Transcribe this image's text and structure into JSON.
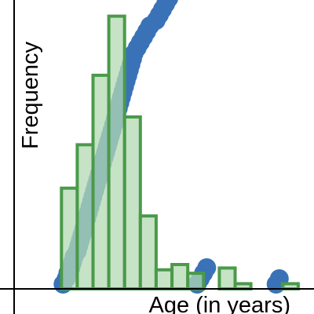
{
  "chart_data": {
    "type": "bar",
    "title": "",
    "xlabel": "Age (in years)",
    "ylabel": "Frequency",
    "bin_width": 5,
    "xlim": [
      5,
      100
    ],
    "ylim": [
      0,
      16
    ],
    "bins": [
      {
        "x0": 20,
        "x1": 25,
        "count": 5.8
      },
      {
        "x0": 25,
        "x1": 30,
        "count": 8.3
      },
      {
        "x0": 30,
        "x1": 35,
        "count": 12.3
      },
      {
        "x0": 35,
        "x1": 40,
        "count": 15.7
      },
      {
        "x0": 40,
        "x1": 45,
        "count": 9.9
      },
      {
        "x0": 45,
        "x1": 50,
        "count": 4.2
      },
      {
        "x0": 50,
        "x1": 55,
        "count": 1.1
      },
      {
        "x0": 55,
        "x1": 60,
        "count": 1.4
      },
      {
        "x0": 60,
        "x1": 65,
        "count": 0.9
      },
      {
        "x0": 65,
        "x1": 70,
        "count": 0.0
      },
      {
        "x0": 70,
        "x1": 75,
        "count": 1.2
      },
      {
        "x0": 75,
        "x1": 80,
        "count": 0.3
      },
      {
        "x0": 90,
        "x1": 95,
        "count": 0.3
      }
    ],
    "points": [
      20.5,
      21.5,
      22,
      23,
      23.5,
      24,
      25,
      25.5,
      26,
      26.5,
      27,
      27.5,
      28,
      28.5,
      29,
      29.5,
      30,
      30.5,
      31,
      31.5,
      32,
      32.5,
      33,
      33.5,
      34,
      34.5,
      35,
      35.5,
      36,
      36.5,
      37,
      37.5,
      38,
      38.5,
      39,
      39.5,
      40,
      40.5,
      41,
      41.5,
      42,
      42.5,
      43,
      44,
      45,
      46,
      47,
      48,
      50,
      51,
      52,
      53,
      54,
      55,
      56,
      57,
      58,
      63,
      64,
      65,
      66,
      88,
      89
    ],
    "colors": {
      "bar_fill": "#b3d9b3",
      "bar_stroke": "#4a9a4a",
      "point": "#3a72b8",
      "axis": "#000000"
    },
    "grid": false
  }
}
